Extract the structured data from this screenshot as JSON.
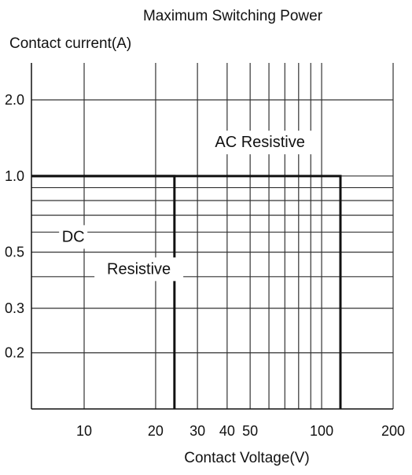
{
  "chart_data": {
    "type": "line",
    "title": "Maximum Switching Power",
    "ylabel": "Contact current(A)",
    "xlabel": "Contact Voltage(V)",
    "x_scale": "log",
    "y_scale": "log",
    "xlim": [
      6,
      200
    ],
    "ylim": [
      0.12,
      2.8
    ],
    "x_ticks": [
      {
        "value": 10,
        "label": "10"
      },
      {
        "value": 20,
        "label": "20"
      },
      {
        "value": 30,
        "label": "30"
      },
      {
        "value": 40,
        "label": "40"
      },
      {
        "value": 50,
        "label": "50"
      },
      {
        "value": 100,
        "label": "100"
      },
      {
        "value": 200,
        "label": "200"
      }
    ],
    "y_ticks": [
      {
        "value": 0.2,
        "label": "0.2"
      },
      {
        "value": 0.3,
        "label": "0.3"
      },
      {
        "value": 0.5,
        "label": "0.5"
      },
      {
        "value": 1.0,
        "label": "1.0"
      },
      {
        "value": 2.0,
        "label": "2.0"
      }
    ],
    "grid": true,
    "series": [
      {
        "name": "AC Resistive",
        "x": [
          6,
          120,
          120
        ],
        "y": [
          1.0,
          1.0,
          0.12
        ]
      },
      {
        "name": "DC Resistive",
        "x": [
          6,
          24,
          24
        ],
        "y": [
          1.0,
          1.0,
          0.12
        ]
      }
    ],
    "annotations": [
      {
        "text": "AC Resistive",
        "x": 55,
        "y": 1.3
      },
      {
        "text": "DC",
        "x": 9,
        "y": 0.55
      },
      {
        "text": "Resistive",
        "x": 17,
        "y": 0.41
      }
    ]
  }
}
